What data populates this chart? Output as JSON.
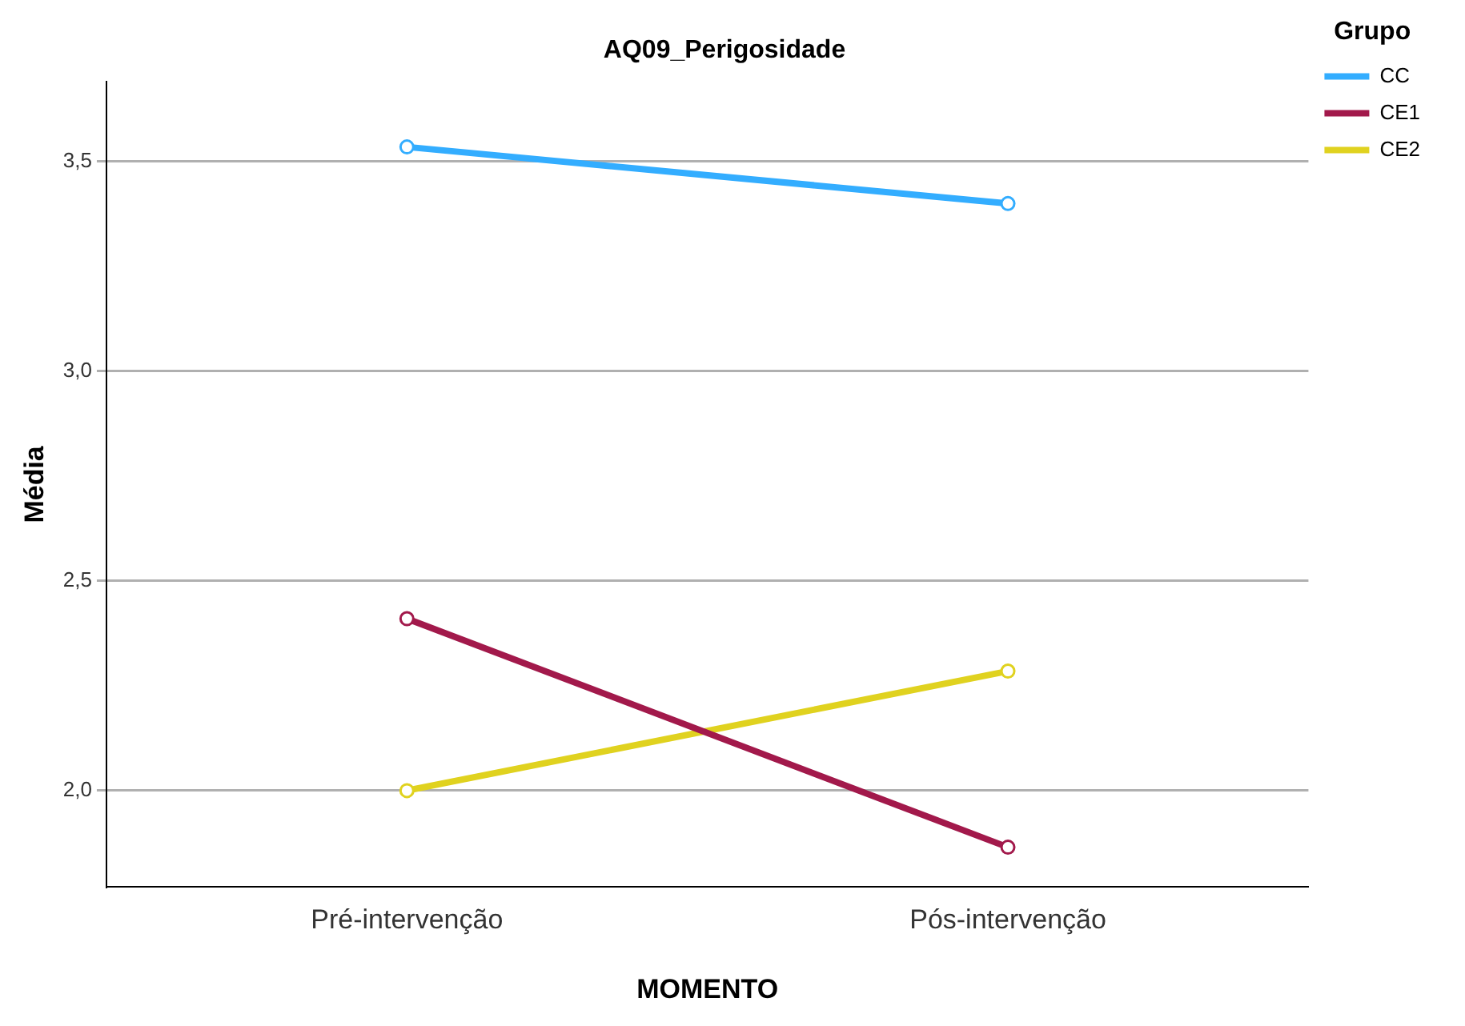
{
  "chart_data": {
    "type": "line",
    "title": "AQ09_Perigosidade",
    "xlabel": "MOMENTO",
    "ylabel": "Média",
    "legend_title": "Grupo",
    "categories": [
      "Pré-intervenção",
      "Pós-intervenção"
    ],
    "series": [
      {
        "name": "CC",
        "color": "#33adff",
        "values": [
          3.535,
          3.4
        ]
      },
      {
        "name": "CE1",
        "color": "#a2194b",
        "values": [
          2.41,
          1.865
        ]
      },
      {
        "name": "CE2",
        "color": "#e0d21f",
        "values": [
          2.0,
          2.285
        ]
      }
    ],
    "ylim": [
      1.77,
      3.69
    ],
    "yticks": [
      {
        "value": 2.0,
        "label": "2,0"
      },
      {
        "value": 2.5,
        "label": "2,5"
      },
      {
        "value": 3.0,
        "label": "3,0"
      },
      {
        "value": 3.5,
        "label": "3,5"
      }
    ],
    "grid": "y",
    "legend": "top right",
    "marker": "circle",
    "line_style": "solid"
  }
}
